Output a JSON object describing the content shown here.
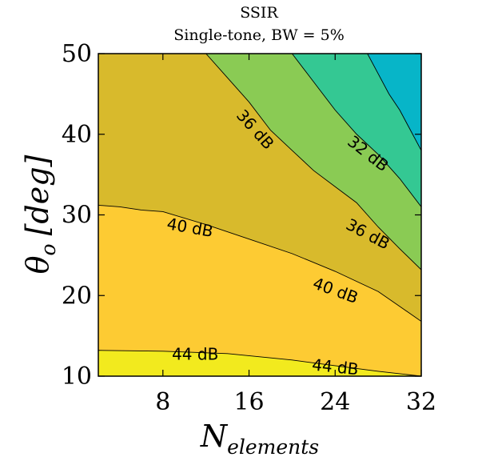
{
  "chart_data": {
    "type": "contour",
    "title": "SSIR",
    "subtitle": "Single-tone, BW = 5%",
    "xlabel": "N",
    "xlabel_sub": "elements",
    "ylabel": "θ",
    "ylabel_sub": "o",
    "ylabel_unit": "[deg]",
    "xlim": [
      2,
      32
    ],
    "ylim": [
      10,
      50
    ],
    "xticks": [
      8,
      16,
      24,
      32
    ],
    "xtick_labels": [
      "8",
      "16",
      "24",
      "32"
    ],
    "yticks": [
      10,
      20,
      30,
      40,
      50
    ],
    "ytick_labels": [
      "10",
      "20",
      "30",
      "40",
      "50"
    ],
    "grid": false,
    "legend": "none",
    "levels": [
      {
        "name": "lvl-44",
        "color": "#F2EA1E",
        "boundary": [
          [
            2,
            13.2
          ],
          [
            8,
            13.1
          ],
          [
            14,
            12.8
          ],
          [
            20,
            12.0
          ],
          [
            24,
            11.3
          ],
          [
            28,
            10.6
          ],
          [
            32,
            10.0
          ]
        ]
      },
      {
        "name": "lvl-40-44",
        "color": "#FDCB33",
        "boundary": [
          [
            2,
            31.2
          ],
          [
            4,
            31.0
          ],
          [
            6,
            30.6
          ],
          [
            8,
            30.4
          ],
          [
            12,
            28.8
          ],
          [
            16,
            27.0
          ],
          [
            20,
            25.2
          ],
          [
            24,
            23.0
          ],
          [
            28,
            20.5
          ],
          [
            32,
            16.8
          ]
        ]
      },
      {
        "name": "lvl-36-40",
        "color": "#D8BA2C",
        "boundary": [
          [
            12,
            50.0
          ],
          [
            14,
            47.0
          ],
          [
            16,
            44.0
          ],
          [
            18,
            40.5
          ],
          [
            20,
            38.0
          ],
          [
            22,
            35.5
          ],
          [
            24,
            33.5
          ],
          [
            26,
            31.5
          ],
          [
            28,
            28.5
          ],
          [
            30,
            25.8
          ],
          [
            32,
            23.2
          ]
        ]
      },
      {
        "name": "lvl-32-36",
        "color": "#8ACB54",
        "boundary": [
          [
            20,
            50.0
          ],
          [
            22,
            46.5
          ],
          [
            24,
            43.0
          ],
          [
            26,
            40.0
          ],
          [
            28,
            37.5
          ],
          [
            30,
            34.5
          ],
          [
            32,
            31.0
          ]
        ]
      },
      {
        "name": "lvl-28-32",
        "color": "#34C893",
        "boundary": [
          [
            27,
            50.0
          ],
          [
            28,
            47.5
          ],
          [
            29,
            45.0
          ],
          [
            30,
            43.0
          ],
          [
            32,
            38.0
          ]
        ]
      },
      {
        "name": "lvl-28",
        "color": "#07B5C8",
        "boundary": null
      }
    ],
    "contour_labels": [
      {
        "text": "36 dB",
        "x": 16.5,
        "y": 40.5,
        "angle": 48
      },
      {
        "text": "32 dB",
        "x": 27.0,
        "y": 37.5,
        "angle": 38
      },
      {
        "text": "40 dB",
        "x": 10.5,
        "y": 28.3,
        "angle": 10
      },
      {
        "text": "36 dB",
        "x": 27.0,
        "y": 27.5,
        "angle": 28
      },
      {
        "text": "40 dB",
        "x": 24.0,
        "y": 20.5,
        "angle": 20
      },
      {
        "text": "44 dB",
        "x": 11.0,
        "y": 12.6,
        "angle": 0
      },
      {
        "text": "44 dB",
        "x": 24.0,
        "y": 11.0,
        "angle": 6
      }
    ]
  }
}
